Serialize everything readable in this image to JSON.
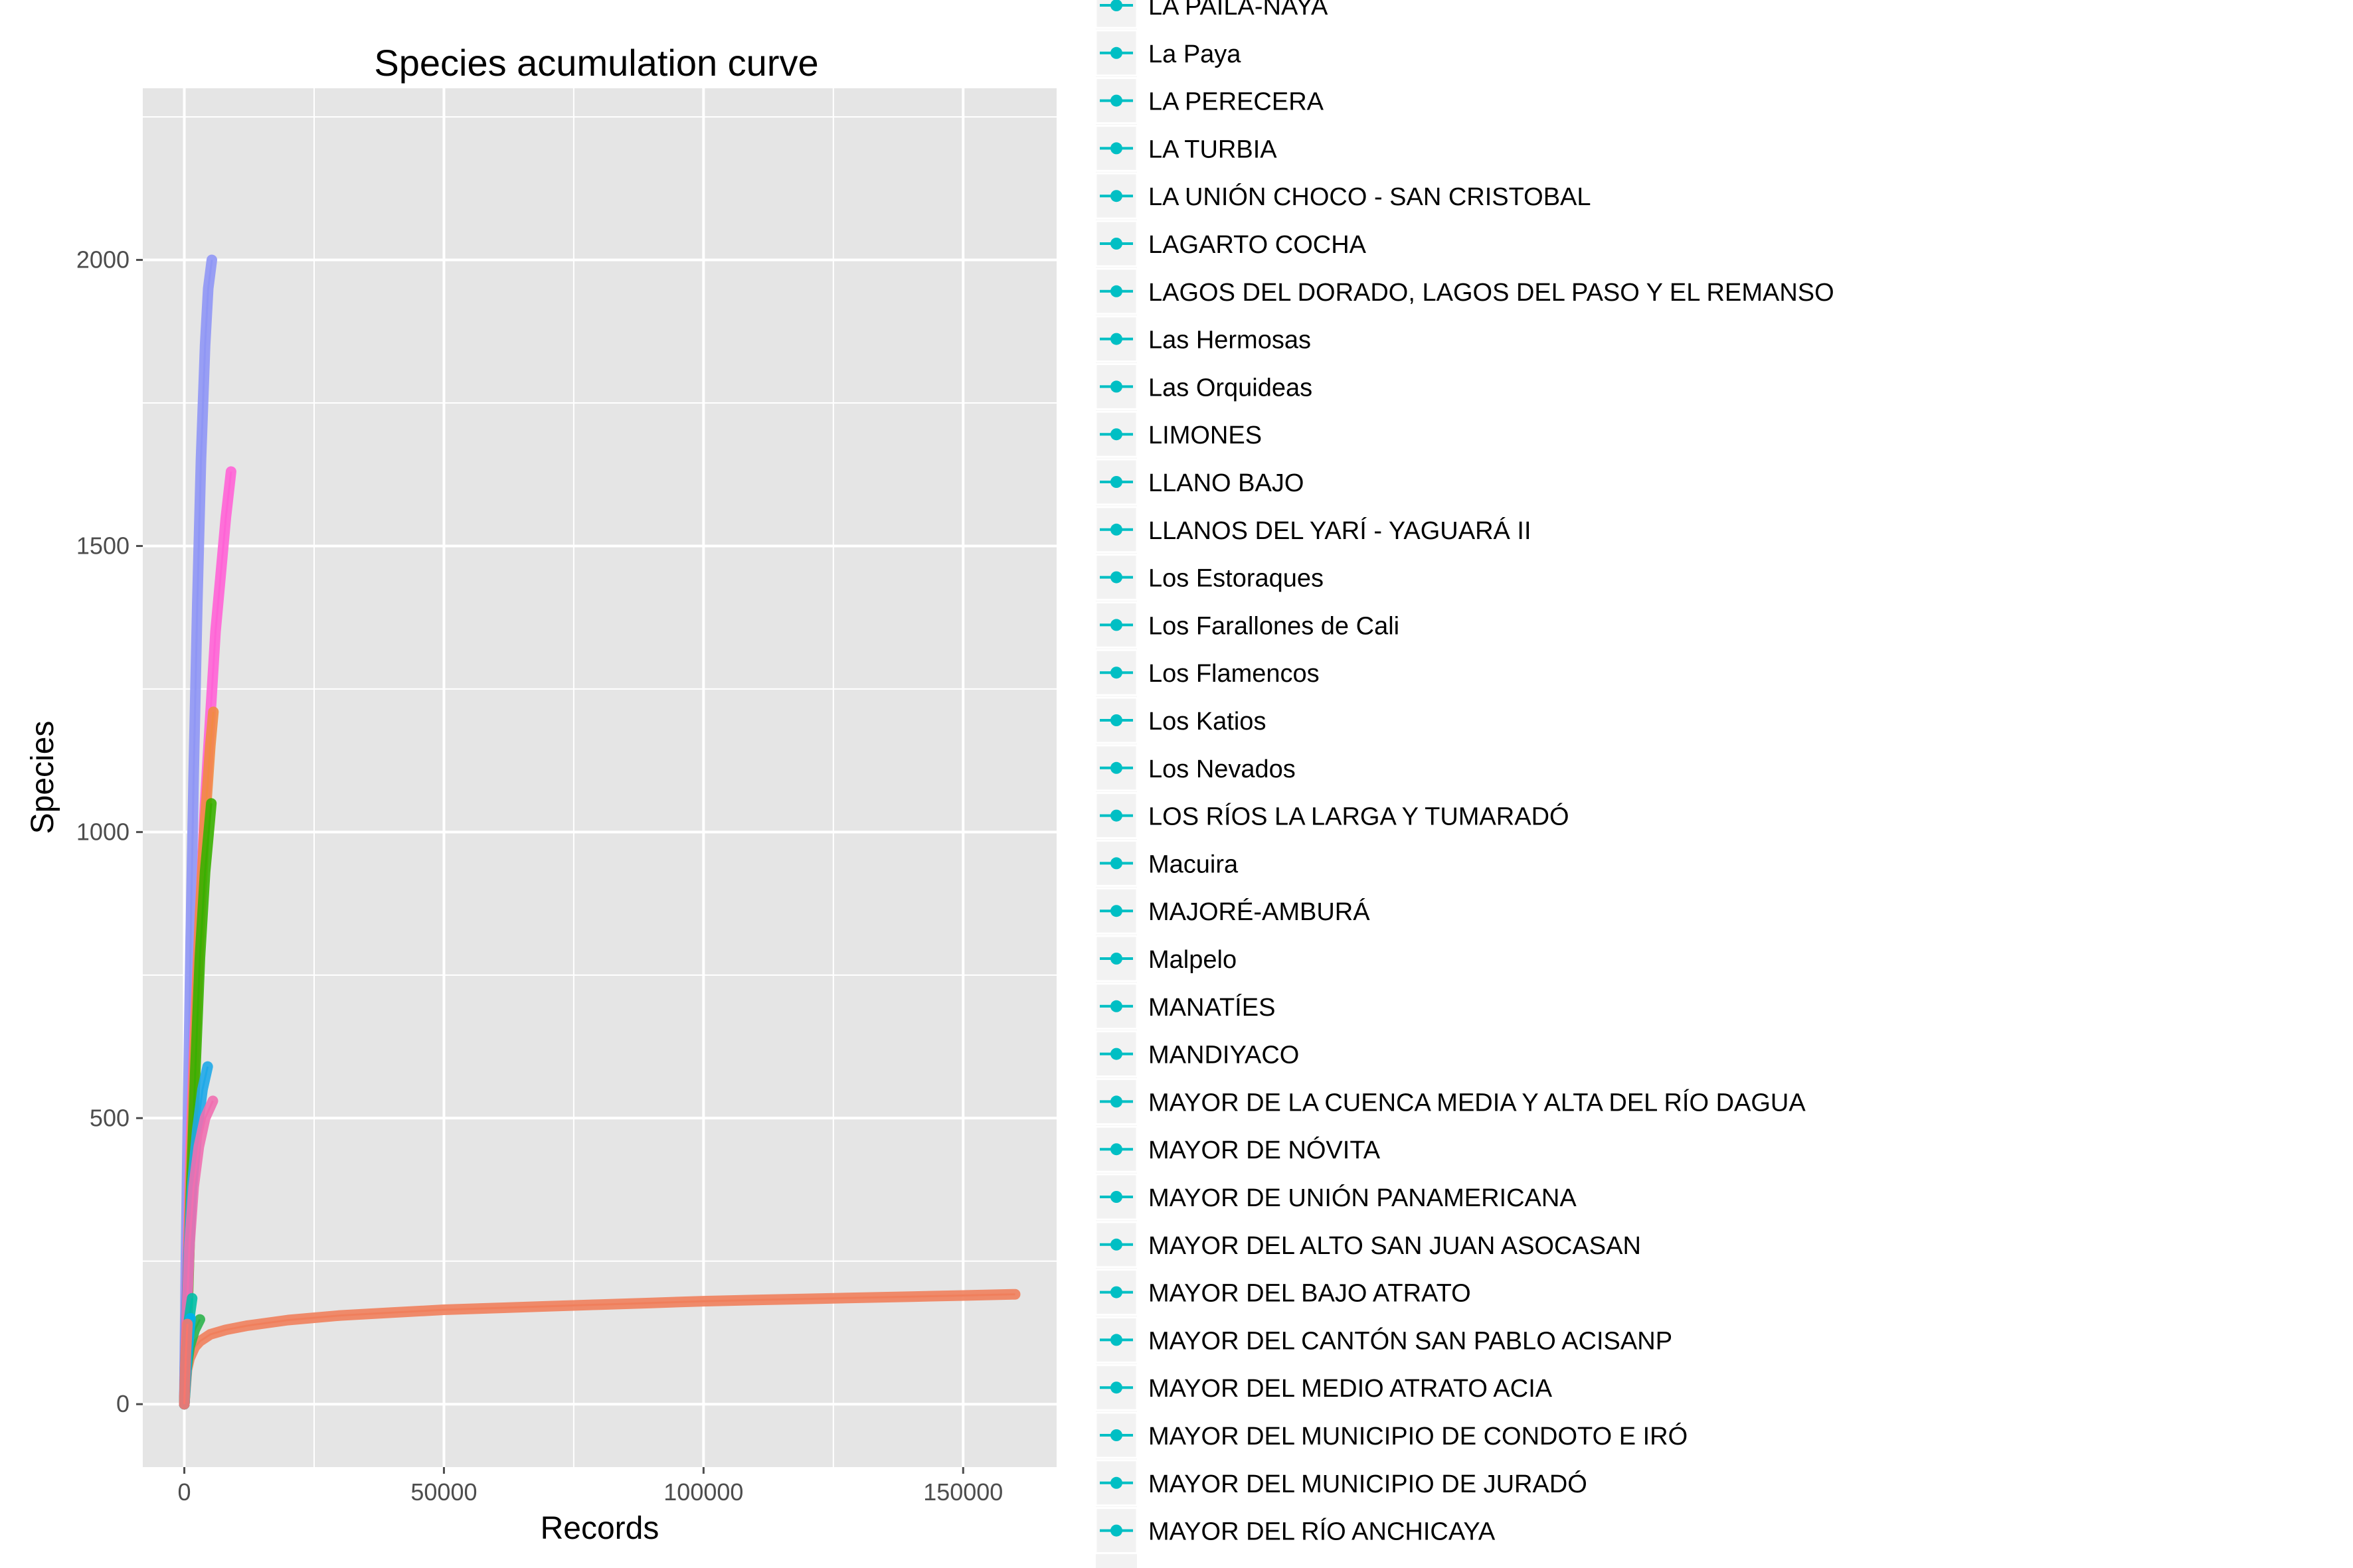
{
  "chart_data": {
    "type": "line",
    "title": "Species acumulation curve",
    "xlabel": "Records",
    "ylabel": "Species",
    "xlim": [
      -8000,
      168000
    ],
    "ylim": [
      -110,
      2300
    ],
    "x_ticks": [
      0,
      50000,
      100000,
      150000
    ],
    "x_tick_labels": [
      "0",
      "50000",
      "100000",
      "150000"
    ],
    "y_ticks": [
      0,
      500,
      1000,
      1500,
      2000
    ],
    "y_tick_labels": [
      "0",
      "500",
      "1000",
      "1500",
      "2000"
    ],
    "grid": true,
    "legend_placement": "right",
    "series": [
      {
        "color": "#f07f5c",
        "x": [
          0,
          500,
          1000,
          2000,
          3000,
          5000,
          8000,
          12000,
          20000,
          30000,
          40000,
          50000,
          60000,
          70000,
          80000,
          90000,
          100000,
          110000,
          120000,
          130000,
          140000,
          150000,
          160000
        ],
        "y": [
          0,
          60,
          80,
          100,
          110,
          122,
          130,
          137,
          147,
          155,
          160,
          165,
          168,
          171,
          174,
          177,
          180,
          182,
          184,
          186,
          188,
          190,
          192
        ]
      },
      {
        "color": "#8f96f5",
        "x": [
          0,
          300,
          700,
          1200,
          1800,
          2500,
          3200,
          4000,
          4600,
          5300
        ],
        "y": [
          0,
          250,
          500,
          800,
          1100,
          1400,
          1650,
          1850,
          1950,
          2000
        ]
      },
      {
        "color": "#ff63d6",
        "x": [
          0,
          500,
          1200,
          2000,
          3000,
          4000,
          5000,
          6000,
          7000,
          8000,
          9000
        ],
        "y": [
          0,
          200,
          450,
          650,
          850,
          1050,
          1200,
          1350,
          1450,
          1550,
          1630
        ]
      },
      {
        "color": "#f28a45",
        "x": [
          0,
          500,
          1200,
          2000,
          3000,
          4000,
          5000,
          5600
        ],
        "y": [
          0,
          180,
          400,
          620,
          850,
          1020,
          1150,
          1210
        ]
      },
      {
        "color": "#39b000",
        "x": [
          0,
          600,
          1300,
          2100,
          3000,
          4000,
          5200
        ],
        "y": [
          0,
          160,
          370,
          580,
          780,
          930,
          1050
        ]
      },
      {
        "color": "#1fa9e8",
        "x": [
          0,
          300,
          800,
          1500,
          2500,
          3500,
          4500
        ],
        "y": [
          0,
          130,
          260,
          380,
          480,
          550,
          590
        ]
      },
      {
        "color": "#f06fb0",
        "x": [
          0,
          400,
          1000,
          1800,
          2800,
          4000,
          5500
        ],
        "y": [
          0,
          140,
          280,
          380,
          450,
          500,
          530
        ]
      },
      {
        "color": "#00bfa6",
        "x": [
          0,
          300,
          800,
          1500
        ],
        "y": [
          0,
          80,
          140,
          185
        ]
      },
      {
        "color": "#2bb24c",
        "x": [
          0,
          400,
          1000,
          2000,
          3000
        ],
        "y": [
          0,
          60,
          100,
          130,
          148
        ]
      },
      {
        "color": "#00b0f0",
        "x": [
          0,
          500,
          1200
        ],
        "y": [
          0,
          80,
          150
        ]
      },
      {
        "color": "#f8766d",
        "x": [
          0,
          300,
          600
        ],
        "y": [
          0,
          90,
          140
        ]
      }
    ],
    "legend_color": "#00bfc4",
    "legend": [
      "LA PAILA-NAYA",
      "La Paya",
      "LA PERECERA",
      "LA TURBIA",
      "LA UNIÓN CHOCO - SAN CRISTOBAL",
      "LAGARTO COCHA",
      "LAGOS DEL DORADO, LAGOS DEL PASO Y EL REMANSO",
      "Las Hermosas",
      "Las Orquideas",
      "LIMONES",
      "LLANO BAJO",
      "LLANOS DEL YARÍ - YAGUARÁ II",
      "Los Estoraques",
      "Los Farallones de Cali",
      "Los Flamencos",
      "Los Katios",
      "Los Nevados",
      "LOS RÍOS LA LARGA Y TUMARADÓ",
      "Macuira",
      "MAJORÉ-AMBURÁ",
      "Malpelo",
      "MANATÍES",
      "MANDIYACO",
      "MAYOR DE LA CUENCA MEDIA Y ALTA DEL RÍO DAGUA",
      "MAYOR DE NÓVITA",
      "MAYOR DE UNIÓN PANAMERICANA",
      "MAYOR DEL ALTO SAN JUAN ASOCASAN",
      "MAYOR DEL BAJO ATRATO",
      "MAYOR DEL CANTÓN SAN PABLO ACISANP",
      "MAYOR DEL MEDIO ATRATO ACIA",
      "MAYOR DEL MUNICIPIO DE CONDOTO E IRÓ",
      "MAYOR DEL MUNICIPIO DE JURADÓ",
      "MAYOR DEL RÍO ANCHICAYA"
    ]
  }
}
